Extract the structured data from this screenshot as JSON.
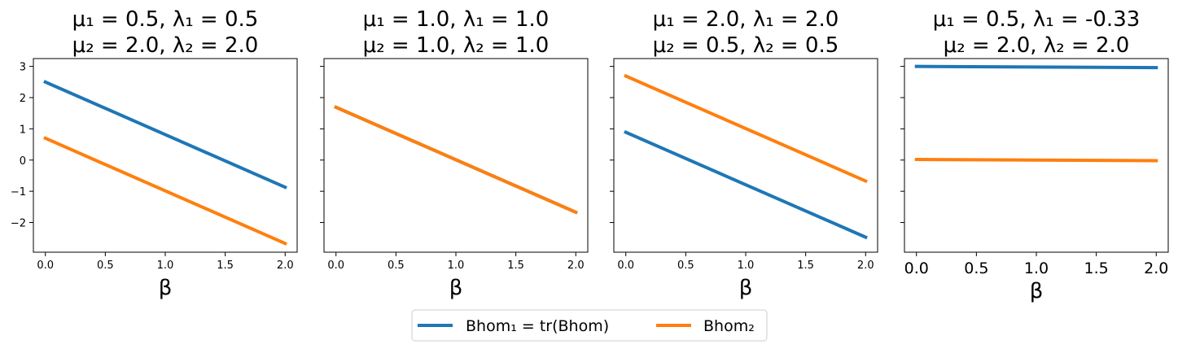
{
  "chart_data": {
    "type": "line",
    "shared_ylim": [
      -2.95,
      3.25
    ],
    "yticks": [
      -2,
      -1,
      0,
      1,
      2,
      3
    ],
    "ytick_labels": [
      "−2",
      "−1",
      "0",
      "1",
      "2",
      "3"
    ],
    "legend": {
      "placement": "bottom-center",
      "entries": [
        {
          "label": "Bhom₁ = tr(Bhom)",
          "color": "#1f77b4"
        },
        {
          "label": "Bhom₂",
          "color": "#ff7f0e"
        }
      ]
    },
    "panels": [
      {
        "title_line1": "μ₁ = 0.5, λ₁ = 0.5",
        "title_line2": "μ₂ = 2.0, λ₂ = 2.0",
        "xlabel": "β",
        "xlim": [
          -0.1,
          2.1
        ],
        "xticks": [
          0.0,
          0.5,
          1.0,
          1.5,
          2.0
        ],
        "xtick_labels": [
          "0.0",
          "0.5",
          "1.0",
          "1.5",
          "2.0"
        ],
        "series": [
          {
            "name": "Bhom₁ = tr(Bhom)",
            "color": "#1f77b4",
            "x": [
              0,
              2
            ],
            "y": [
              2.5,
              -0.87
            ]
          },
          {
            "name": "Bhom₂",
            "color": "#ff7f0e",
            "x": [
              0,
              2
            ],
            "y": [
              0.7,
              -2.67
            ]
          }
        ]
      },
      {
        "title_line1": "μ₁ = 1.0, λ₁ = 1.0",
        "title_line2": "μ₂ = 1.0, λ₂ = 1.0",
        "xlabel": "β",
        "xlim": [
          -0.1,
          2.1
        ],
        "xticks": [
          0.0,
          0.5,
          1.0,
          1.5,
          2.0
        ],
        "xtick_labels": [
          "0.0",
          "0.5",
          "1.0",
          "1.5",
          "2.0"
        ],
        "series": [
          {
            "name": "Bhom₁ = tr(Bhom)",
            "color": "#1f77b4",
            "x": [
              0,
              2
            ],
            "y": [
              1.69,
              -1.67
            ]
          },
          {
            "name": "Bhom₂",
            "color": "#ff7f0e",
            "x": [
              0,
              2
            ],
            "y": [
              1.69,
              -1.67
            ]
          }
        ]
      },
      {
        "title_line1": "μ₁ = 2.0, λ₁ = 2.0",
        "title_line2": "μ₂ = 0.5, λ₂ = 0.5",
        "xlabel": "β",
        "xlim": [
          -0.1,
          2.1
        ],
        "xticks": [
          0.0,
          0.5,
          1.0,
          1.5,
          2.0
        ],
        "xtick_labels": [
          "0.0",
          "0.5",
          "1.0",
          "1.5",
          "2.0"
        ],
        "series": [
          {
            "name": "Bhom₁ = tr(Bhom)",
            "color": "#1f77b4",
            "x": [
              0,
              2
            ],
            "y": [
              0.89,
              -2.47
            ]
          },
          {
            "name": "Bhom₂",
            "color": "#ff7f0e",
            "x": [
              0,
              2
            ],
            "y": [
              2.69,
              -0.67
            ]
          }
        ]
      },
      {
        "title_line1": "μ₁ = 0.5, λ₁ = -0.33",
        "title_line2": "μ₂ = 2.0, λ₂ = 2.0",
        "xlabel": "β",
        "xlim": [
          -0.1,
          2.1
        ],
        "xticks": [
          0.0,
          0.5,
          1.0,
          1.5,
          2.0
        ],
        "xtick_labels": [
          "0.0",
          "0.5",
          "1.0",
          "1.5",
          "2.0"
        ],
        "large_ticks": true,
        "series": [
          {
            "name": "Bhom₁ = tr(Bhom)",
            "color": "#1f77b4",
            "x": [
              0,
              2
            ],
            "y": [
              3.0,
              2.96
            ]
          },
          {
            "name": "Bhom₂",
            "color": "#ff7f0e",
            "x": [
              0,
              2
            ],
            "y": [
              0.02,
              -0.02
            ]
          }
        ]
      }
    ]
  }
}
